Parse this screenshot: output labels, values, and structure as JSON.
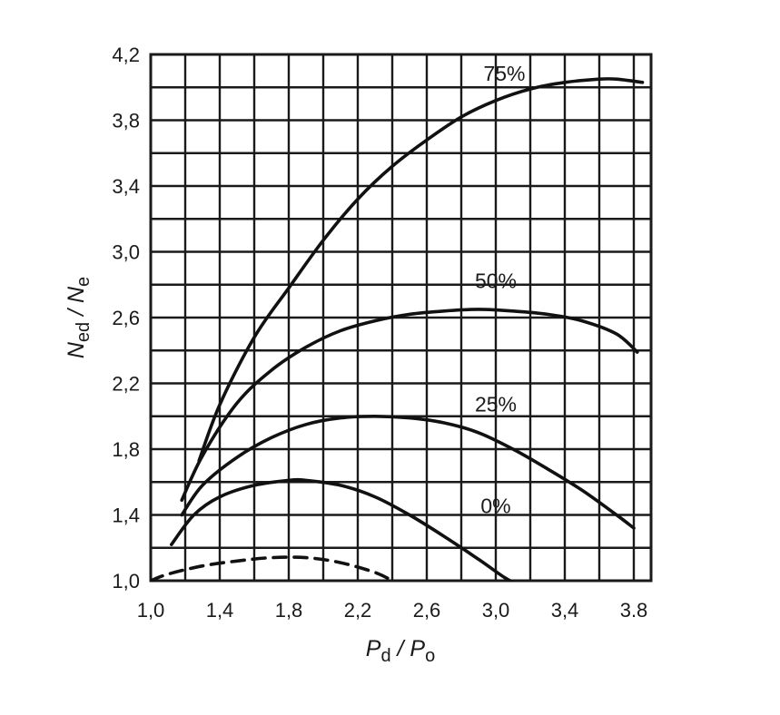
{
  "chart_data": {
    "type": "line",
    "title": "",
    "xlabel": {
      "main1": "P",
      "sub1": "d",
      "sep": " / ",
      "main2": "P",
      "sub2": "o"
    },
    "ylabel": {
      "main1": "N",
      "sub1": "ed",
      "sep": " / ",
      "main2": "N",
      "sub2": "e"
    },
    "xlim": [
      1.0,
      3.9
    ],
    "ylim": [
      1.0,
      4.2
    ],
    "x_ticks": [
      1.0,
      1.4,
      1.8,
      2.2,
      2.6,
      3.0,
      3.4,
      3.8
    ],
    "x_tick_labels": [
      "1,0",
      "1,4",
      "1,8",
      "2,2",
      "2,6",
      "3,0",
      "3,4",
      "3.8"
    ],
    "y_ticks": [
      1.0,
      1.4,
      1.8,
      2.2,
      2.6,
      3.0,
      3.4,
      3.8,
      4.2
    ],
    "y_tick_labels": [
      "1,0",
      "1,4",
      "1,8",
      "2,2",
      "2,6",
      "3,0",
      "3,4",
      "3,8",
      "4,2"
    ],
    "grid": true,
    "grid_x_step": 0.2,
    "grid_y_step": 0.2,
    "series": [
      {
        "name": "75%",
        "label_at": [
          3.05,
          4.04
        ],
        "dashed": false,
        "points": [
          [
            1.28,
            1.73
          ],
          [
            1.4,
            2.07
          ],
          [
            1.6,
            2.48
          ],
          [
            1.8,
            2.78
          ],
          [
            2.0,
            3.07
          ],
          [
            2.2,
            3.32
          ],
          [
            2.4,
            3.52
          ],
          [
            2.6,
            3.68
          ],
          [
            2.8,
            3.82
          ],
          [
            3.0,
            3.92
          ],
          [
            3.2,
            3.99
          ],
          [
            3.4,
            4.03
          ],
          [
            3.6,
            4.05
          ],
          [
            3.7,
            4.05
          ],
          [
            3.85,
            4.03
          ]
        ]
      },
      {
        "name": "50%",
        "label_at": [
          3.0,
          2.78
        ],
        "dashed": false,
        "points": [
          [
            1.18,
            1.49
          ],
          [
            1.3,
            1.76
          ],
          [
            1.5,
            2.08
          ],
          [
            1.7,
            2.28
          ],
          [
            1.9,
            2.42
          ],
          [
            2.1,
            2.52
          ],
          [
            2.3,
            2.58
          ],
          [
            2.5,
            2.62
          ],
          [
            2.7,
            2.64
          ],
          [
            2.9,
            2.65
          ],
          [
            3.1,
            2.64
          ],
          [
            3.3,
            2.62
          ],
          [
            3.5,
            2.58
          ],
          [
            3.7,
            2.5
          ],
          [
            3.82,
            2.39
          ]
        ]
      },
      {
        "name": "25%",
        "label_at": [
          3.0,
          2.03
        ],
        "dashed": false,
        "points": [
          [
            1.18,
            1.4
          ],
          [
            1.3,
            1.58
          ],
          [
            1.5,
            1.75
          ],
          [
            1.7,
            1.87
          ],
          [
            1.9,
            1.95
          ],
          [
            2.1,
            1.99
          ],
          [
            2.3,
            2.0
          ],
          [
            2.5,
            1.99
          ],
          [
            2.7,
            1.96
          ],
          [
            2.9,
            1.9
          ],
          [
            3.1,
            1.8
          ],
          [
            3.3,
            1.68
          ],
          [
            3.5,
            1.55
          ],
          [
            3.7,
            1.4
          ],
          [
            3.8,
            1.32
          ]
        ]
      },
      {
        "name": "0%",
        "label_at": [
          3.0,
          1.41
        ],
        "dashed": false,
        "points": [
          [
            1.12,
            1.22
          ],
          [
            1.25,
            1.4
          ],
          [
            1.4,
            1.51
          ],
          [
            1.6,
            1.58
          ],
          [
            1.8,
            1.61
          ],
          [
            1.9,
            1.61
          ],
          [
            2.1,
            1.58
          ],
          [
            2.3,
            1.51
          ],
          [
            2.5,
            1.4
          ],
          [
            2.7,
            1.27
          ],
          [
            2.9,
            1.13
          ],
          [
            3.05,
            1.02
          ],
          [
            3.12,
            0.98
          ]
        ]
      },
      {
        "name": "",
        "dashed": true,
        "points": [
          [
            1.0,
            1.0
          ],
          [
            1.1,
            1.04
          ],
          [
            1.3,
            1.09
          ],
          [
            1.5,
            1.12
          ],
          [
            1.7,
            1.14
          ],
          [
            1.9,
            1.14
          ],
          [
            2.1,
            1.11
          ],
          [
            2.3,
            1.05
          ],
          [
            2.4,
            1.0
          ]
        ]
      }
    ]
  }
}
